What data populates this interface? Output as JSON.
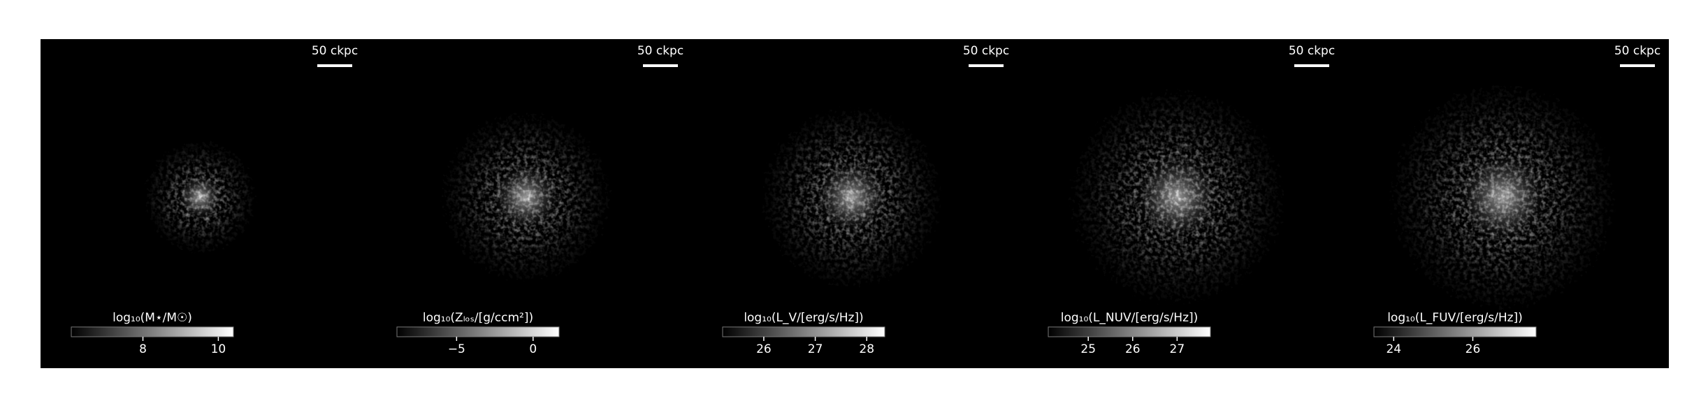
{
  "chart_data": [
    {
      "type": "image",
      "scale_bar": "50 ckpc",
      "colorbar_label": "log₁₀(M⋆/M☉)",
      "clim": [
        6.1,
        10.4
      ],
      "cticks": [
        8,
        10
      ]
    },
    {
      "type": "image",
      "scale_bar": "50 ckpc",
      "colorbar_label": "log₁₀(Zₗₒₛ/[g/ccm²])",
      "clim": [
        -8.9,
        1.7
      ],
      "cticks": [
        {
          "value": -5,
          "label": "−5"
        },
        0
      ]
    },
    {
      "type": "image",
      "scale_bar": "50 ckpc",
      "colorbar_label": "log₁₀(L_V/[erg/s/Hz])",
      "clim": [
        25.2,
        28.35
      ],
      "cticks": [
        26,
        27,
        28
      ]
    },
    {
      "type": "image",
      "scale_bar": "50 ckpc",
      "colorbar_label": "log₁₀(L_NUV/[erg/s/Hz])",
      "clim": [
        24.1,
        27.75
      ],
      "cticks": [
        25,
        26,
        27
      ]
    },
    {
      "type": "image",
      "scale_bar": "50 ckpc",
      "colorbar_label": "log₁₀(L_FUV/[erg/s/Hz])",
      "clim": [
        23.5,
        27.6
      ],
      "cticks": [
        24,
        26
      ]
    }
  ]
}
